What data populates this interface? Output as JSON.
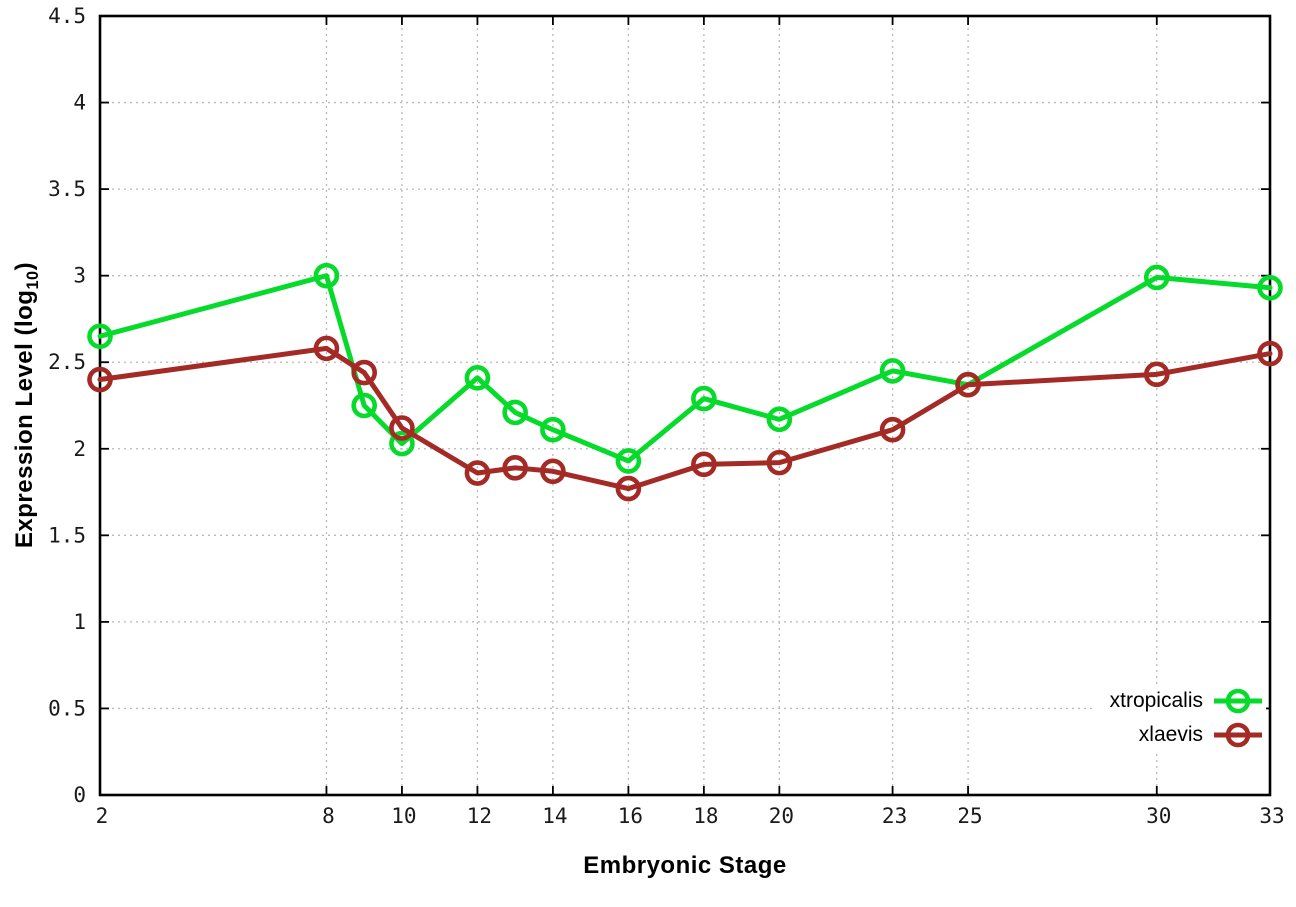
{
  "labels": {
    "x_label": "Embryonic Stage",
    "y_prefix": "Expression Level (log",
    "y_sub": "10",
    "y_suffix": ")"
  },
  "colors": {
    "series_green": "#06db2b",
    "series_red": "#a42a26",
    "grid": "#b9b9b9",
    "axis": "#000000",
    "tick_text": "#1a1a1a"
  },
  "chart_data": {
    "type": "line",
    "title": "",
    "xlabel": "Embryonic Stage",
    "ylabel": "Expression Level (log_10)",
    "x": [
      2,
      8,
      9,
      10,
      12,
      13,
      14,
      16,
      18,
      20,
      23,
      25,
      30,
      33
    ],
    "series": [
      {
        "name": "xtropicalis",
        "color": "#06db2b",
        "values": [
          2.65,
          3.0,
          2.25,
          2.03,
          2.41,
          2.21,
          2.11,
          1.93,
          2.29,
          2.17,
          2.45,
          2.37,
          2.99,
          2.93
        ]
      },
      {
        "name": "xlaevis",
        "color": "#a42a26",
        "values": [
          2.4,
          2.58,
          2.44,
          2.12,
          1.86,
          1.89,
          1.87,
          1.77,
          1.91,
          1.92,
          2.11,
          2.37,
          2.43,
          2.55
        ]
      }
    ],
    "xlim": [
      2,
      33
    ],
    "ylim": [
      0,
      4.5
    ],
    "xticks": [
      2,
      8,
      10,
      12,
      14,
      16,
      18,
      20,
      23,
      25,
      30,
      33
    ],
    "yticks": [
      0,
      0.5,
      1,
      1.5,
      2,
      2.5,
      3,
      3.5,
      4,
      4.5
    ],
    "grid": true,
    "marker": "open-circle",
    "legend_position": "bottom-right"
  }
}
